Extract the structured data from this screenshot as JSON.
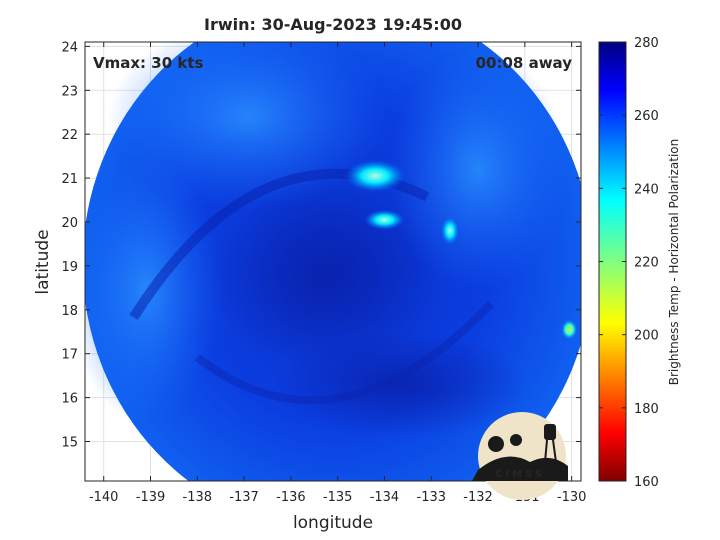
{
  "chart_data": {
    "type": "heatmap",
    "title": "Irwin: 30-Aug-2023 19:45:00",
    "xlabel": "longitude",
    "ylabel": "latitude",
    "xlim": [
      -140.4,
      -129.8
    ],
    "ylim": [
      14.1,
      24.1
    ],
    "x_ticks": [
      -140,
      -139,
      -138,
      -137,
      -136,
      -135,
      -134,
      -133,
      -132,
      -131,
      -130
    ],
    "x_tick_labels": [
      "-140",
      "-139",
      "-138",
      "-137",
      "-136",
      "-135",
      "-134",
      "-133",
      "-132",
      "-131",
      "-130"
    ],
    "y_ticks": [
      15,
      16,
      17,
      18,
      19,
      20,
      21,
      22,
      23,
      24
    ],
    "y_tick_labels": [
      "15",
      "16",
      "17",
      "18",
      "19",
      "20",
      "21",
      "22",
      "23",
      "24"
    ],
    "grid": true,
    "annotations": {
      "left": "Vmax: 30 kts",
      "right": "00:08 away"
    },
    "swath": {
      "center": [
        -135.0,
        19.05
      ],
      "radius_deg": 5.45,
      "background_temp": 262
    },
    "features": [
      {
        "name": "cold-cloud-north",
        "lon": -134.2,
        "lat": 21.05,
        "temp": 236
      },
      {
        "name": "cold-cloud-central",
        "lon": -134.0,
        "lat": 20.05,
        "temp": 240
      },
      {
        "name": "cold-cloud-east",
        "lon": -132.6,
        "lat": 19.8,
        "temp": 238
      },
      {
        "name": "cold-cloud-edge",
        "lon": -130.05,
        "lat": 17.55,
        "temp": 215
      }
    ],
    "colorbar": {
      "label": "Brightness Temp - Horizontal Polarization",
      "min": 160,
      "max": 280,
      "ticks": [
        160,
        180,
        200,
        220,
        240,
        260,
        280
      ],
      "tick_labels": [
        "160",
        "180",
        "200",
        "220",
        "240",
        "260",
        "280"
      ],
      "colormap": "jet"
    },
    "logo": "CIMSS"
  }
}
